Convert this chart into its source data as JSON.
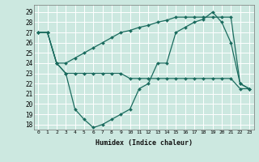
{
  "xlabel": "Humidex (Indice chaleur)",
  "x_ticks": [
    0,
    1,
    2,
    3,
    4,
    5,
    6,
    7,
    8,
    9,
    10,
    11,
    12,
    13,
    14,
    15,
    16,
    17,
    18,
    19,
    20,
    21,
    22,
    23
  ],
  "ylim": [
    17.5,
    29.7
  ],
  "yticks": [
    18,
    19,
    20,
    21,
    22,
    23,
    24,
    25,
    26,
    27,
    28,
    29
  ],
  "bg_color": "#cce8e0",
  "grid_color": "#ffffff",
  "line_color": "#1a6b5e",
  "series": [
    {
      "x": [
        0,
        1,
        2,
        3,
        4,
        5,
        6,
        7,
        8,
        9,
        10,
        11,
        12,
        13,
        14,
        15,
        16,
        17,
        18,
        19,
        20,
        21,
        22,
        23
      ],
      "y": [
        27,
        27,
        24,
        23,
        19.5,
        18.5,
        17.7,
        18.0,
        18.5,
        19.0,
        19.5,
        21.5,
        22.0,
        24.0,
        24.0,
        27.0,
        27.5,
        28.0,
        28.3,
        29.0,
        28.0,
        26.0,
        22.0,
        21.5
      ]
    },
    {
      "x": [
        0,
        1,
        2,
        3,
        4,
        5,
        6,
        7,
        8,
        9,
        10,
        11,
        12,
        13,
        14,
        15,
        16,
        17,
        18,
        19,
        20,
        21,
        22,
        23
      ],
      "y": [
        27,
        27,
        24,
        23,
        23,
        23,
        23,
        23,
        23,
        23,
        22.5,
        22.5,
        22.5,
        22.5,
        22.5,
        22.5,
        22.5,
        22.5,
        22.5,
        22.5,
        22.5,
        22.5,
        21.5,
        21.5
      ]
    },
    {
      "x": [
        0,
        1,
        2,
        3,
        4,
        5,
        6,
        7,
        8,
        9,
        10,
        11,
        12,
        13,
        14,
        15,
        16,
        17,
        18,
        19,
        20,
        21,
        22,
        23
      ],
      "y": [
        27,
        27,
        24,
        24.0,
        24.5,
        25.0,
        25.5,
        26.0,
        26.5,
        27.0,
        27.2,
        27.5,
        27.7,
        28.0,
        28.2,
        28.5,
        28.5,
        28.5,
        28.5,
        28.5,
        28.5,
        28.5,
        22.0,
        21.5
      ]
    }
  ]
}
